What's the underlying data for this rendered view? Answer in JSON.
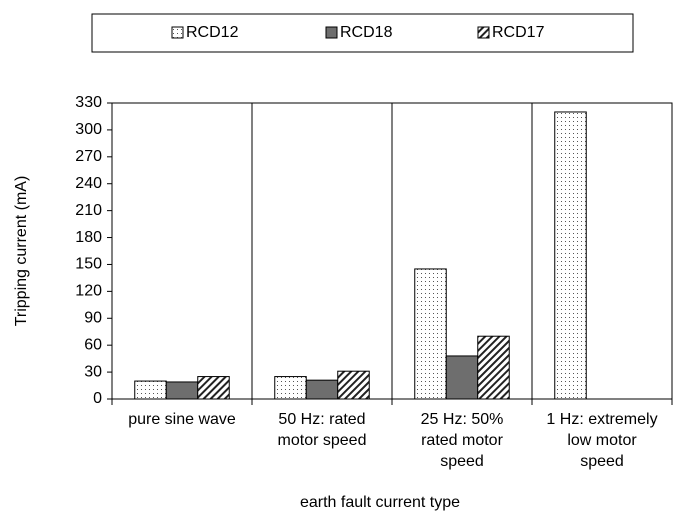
{
  "chart_data": {
    "type": "bar",
    "categories": [
      "pure sine wave",
      "50 Hz: rated motor speed",
      "25 Hz: 50% rated motor speed",
      "1 Hz: extremely low motor speed"
    ],
    "series": [
      {
        "name": "RCD12",
        "color": "#ffffff",
        "pattern": "dots",
        "values": [
          20,
          25,
          145,
          320
        ]
      },
      {
        "name": "RCD18",
        "color": "#6e6e6e",
        "pattern": "solid",
        "values": [
          19,
          21,
          48,
          null
        ]
      },
      {
        "name": "RCD17",
        "color": "#ffffff",
        "pattern": "hatch",
        "values": [
          25,
          31,
          70,
          null
        ]
      }
    ],
    "ylabel": "Tripping current (mA)",
    "xlabel": "earth fault current type",
    "ylim": [
      0,
      330
    ],
    "yticks": [
      0,
      30,
      60,
      90,
      120,
      150,
      180,
      210,
      240,
      270,
      300,
      330
    ],
    "legend": "top"
  }
}
